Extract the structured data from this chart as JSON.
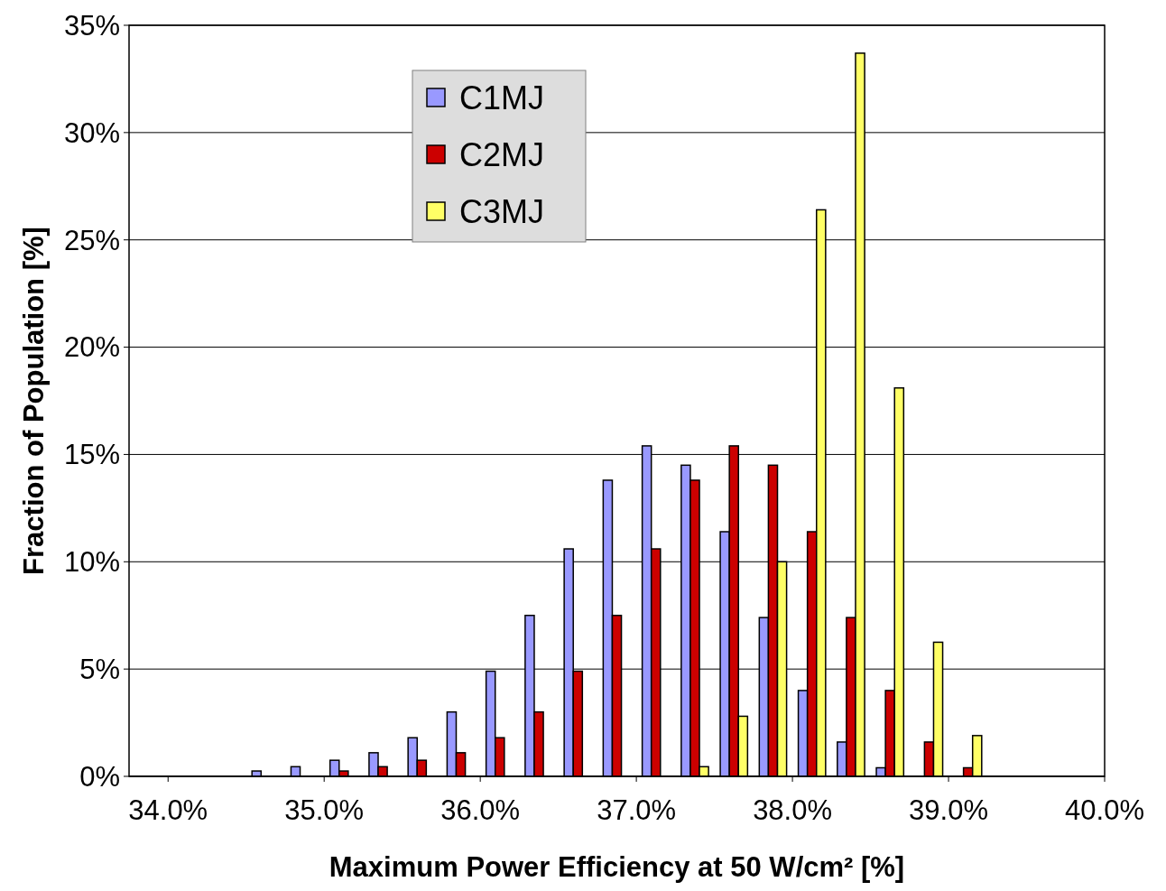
{
  "chart_data": {
    "type": "bar",
    "xlabel": "Maximum Power Efficiency at 50 W/cm² [%]",
    "ylabel": "Fraction of Population [%]",
    "x": [
      33.875,
      34.125,
      34.375,
      34.625,
      34.875,
      35.125,
      35.375,
      35.625,
      35.875,
      36.125,
      36.375,
      36.625,
      36.875,
      37.125,
      37.375,
      37.625,
      37.875,
      38.125,
      38.375,
      38.625,
      38.875,
      39.125,
      39.375,
      39.625
    ],
    "series": [
      {
        "name": "C1MJ",
        "color": "#9999ff",
        "values": [
          0,
          0,
          0,
          0.25,
          0.45,
          0.75,
          1.1,
          1.8,
          3.0,
          4.9,
          7.5,
          10.6,
          13.8,
          15.4,
          14.5,
          11.4,
          7.4,
          4.0,
          1.6,
          0.4,
          0,
          0,
          0,
          0
        ]
      },
      {
        "name": "C2MJ",
        "color": "#cc0000",
        "values": [
          0,
          0,
          0,
          0,
          0,
          0.25,
          0.45,
          0.75,
          1.1,
          1.8,
          3.0,
          4.9,
          7.5,
          10.6,
          13.8,
          15.4,
          14.5,
          11.4,
          7.4,
          4.0,
          1.6,
          0.4,
          0,
          0
        ]
      },
      {
        "name": "C3MJ",
        "color": "#ffff66",
        "values": [
          0,
          0,
          0,
          0,
          0,
          0,
          0,
          0,
          0,
          0,
          0,
          0,
          0,
          0,
          0.45,
          2.8,
          10.0,
          26.4,
          33.7,
          18.1,
          6.25,
          1.9,
          0,
          0
        ]
      }
    ],
    "xlim": [
      33.75,
      40.0
    ],
    "xticks": [
      {
        "value": 34,
        "label": "34.0%"
      },
      {
        "value": 35,
        "label": "35.0%"
      },
      {
        "value": 36,
        "label": "36.0%"
      },
      {
        "value": 37,
        "label": "37.0%"
      },
      {
        "value": 38,
        "label": "38.0%"
      },
      {
        "value": 39,
        "label": "39.0%"
      },
      {
        "value": 40,
        "label": "40.0%"
      }
    ],
    "ylim": [
      0,
      35
    ],
    "yticks": [
      {
        "value": 0,
        "label": "0%"
      },
      {
        "value": 5,
        "label": "5%"
      },
      {
        "value": 10,
        "label": "10%"
      },
      {
        "value": 15,
        "label": "15%"
      },
      {
        "value": 20,
        "label": "20%"
      },
      {
        "value": 25,
        "label": "25%"
      },
      {
        "value": 30,
        "label": "30%"
      },
      {
        "value": 35,
        "label": "35%"
      }
    ],
    "grid": "y",
    "legend": "top left"
  }
}
